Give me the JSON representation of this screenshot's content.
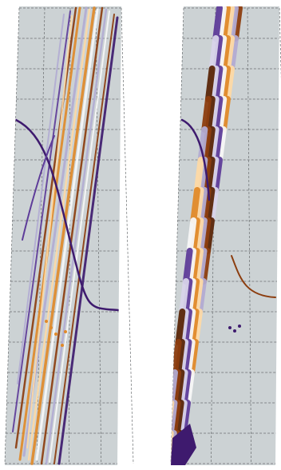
{
  "palette": {
    "panel_background": "#ccd2d4",
    "grid": "#6b6f71",
    "dark_purple": "#3e1a6e",
    "purple": "#5e3c99",
    "lavender": "#b2abd2",
    "light_lavender": "#d8d4ea",
    "white": "#f7f7f7",
    "peach": "#fdd9a5",
    "orange": "#e08a2a",
    "brown": "#8c3d0f",
    "dark_brown": "#5a2608"
  },
  "panels": [
    {
      "id": "left",
      "description_color_mode": "striped-by-trajectory"
    },
    {
      "id": "right",
      "description_color_mode": "checkered-by-segment"
    }
  ]
}
